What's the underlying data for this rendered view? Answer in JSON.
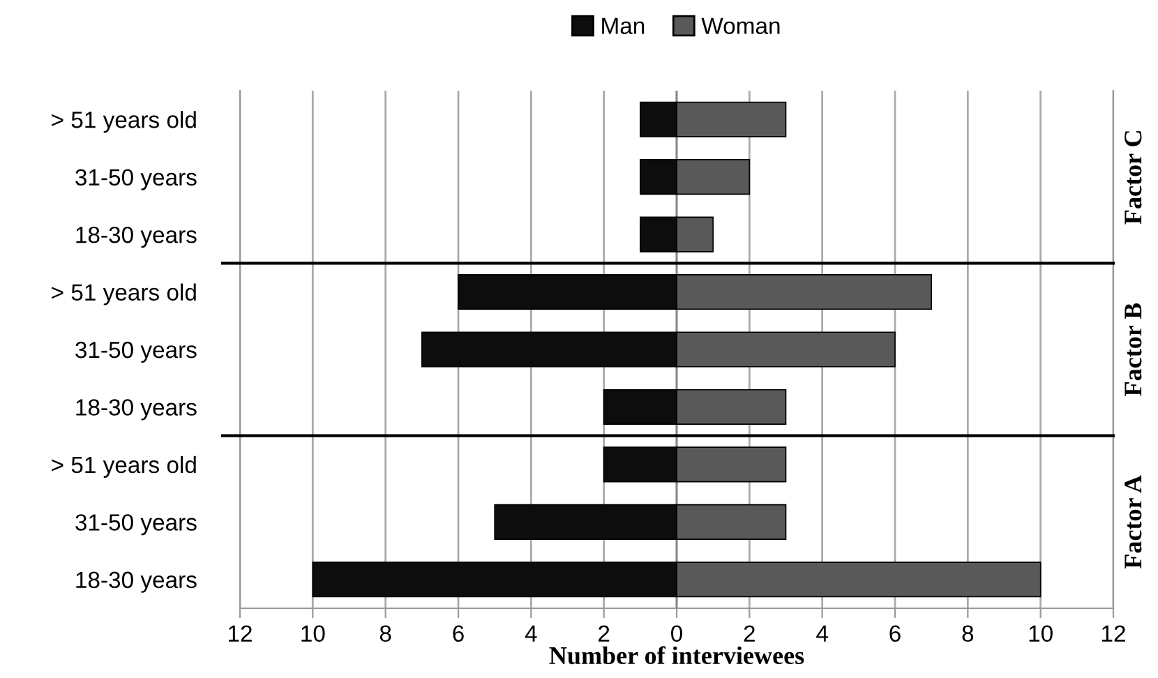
{
  "chart_data": {
    "type": "bar",
    "orientation": "horizontal",
    "stacked": true,
    "xlabel": "Number of interviewees",
    "categories": [
      "> 51 years old",
      "31-50 years",
      "18-30 years",
      "> 51 years old",
      "31-50 years",
      "18-30 years",
      "> 51 years old",
      "31-50 years",
      "18-30 years"
    ],
    "series": [
      {
        "name": "Man",
        "color": "#0d0d0d",
        "values": [
          -1,
          -1,
          -1,
          -6,
          -7,
          -2,
          -2,
          -5,
          -10
        ]
      },
      {
        "name": "Woman",
        "color": "#595959",
        "values": [
          3,
          2,
          1,
          7,
          6,
          3,
          3,
          3,
          10
        ]
      }
    ],
    "xlim": [
      -12,
      12
    ],
    "xticks": [
      {
        "value": -12,
        "label": "12"
      },
      {
        "value": -10,
        "label": "10"
      },
      {
        "value": -8,
        "label": "8"
      },
      {
        "value": -6,
        "label": "6"
      },
      {
        "value": -4,
        "label": "4"
      },
      {
        "value": -2,
        "label": "2"
      },
      0,
      2,
      4,
      6,
      8,
      10,
      12
    ],
    "annotations": [
      "Factor C",
      "Factor B",
      "Factor A"
    ],
    "grid": "x",
    "legend": "top"
  }
}
